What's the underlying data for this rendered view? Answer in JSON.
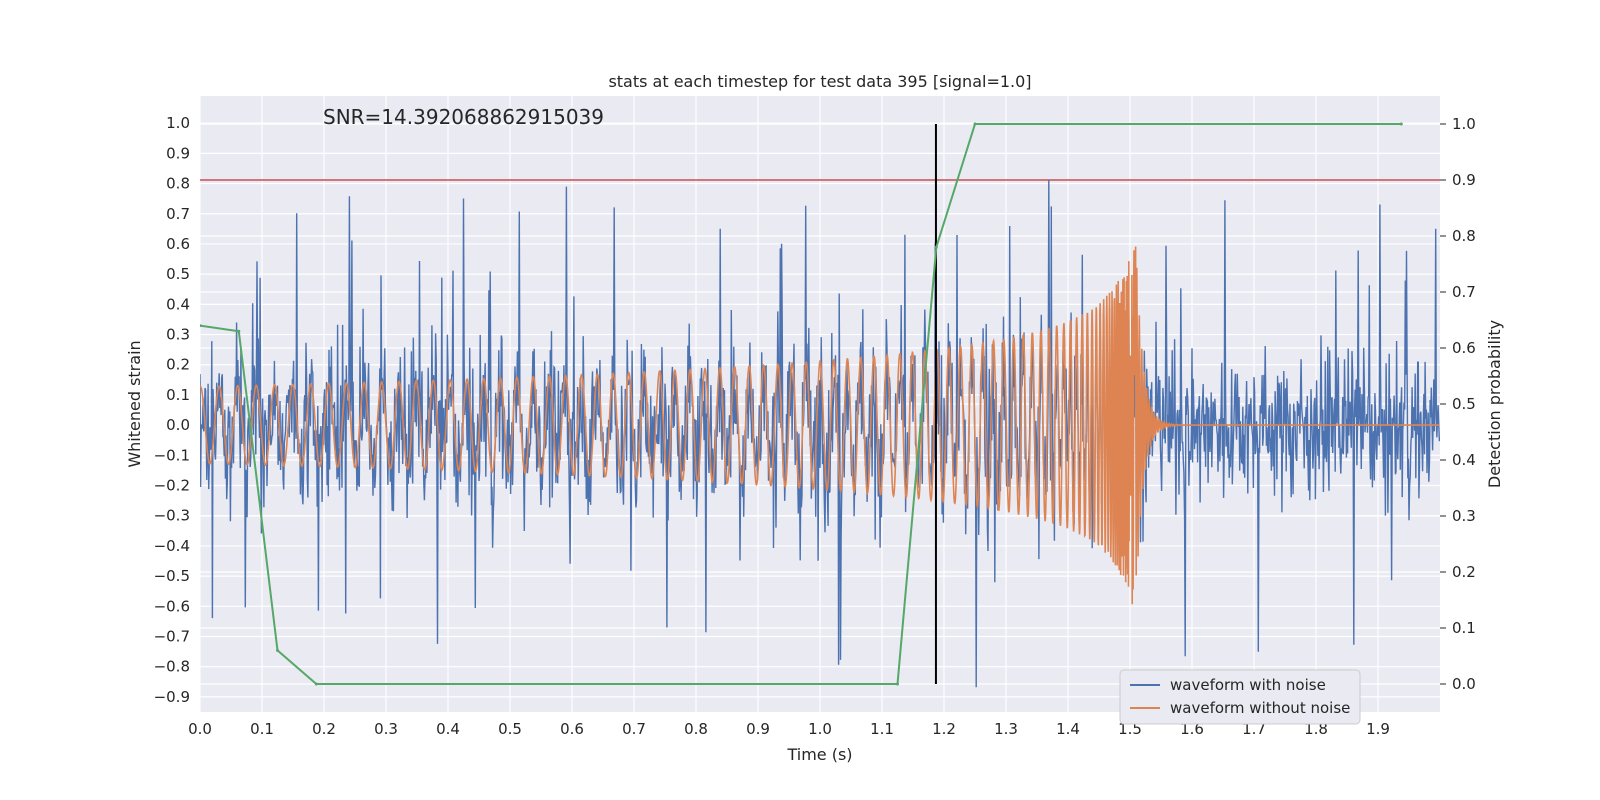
{
  "chart_data": {
    "type": "line",
    "title": "stats at each timestep for test data 395 [signal=1.0]",
    "annotation": "SNR=14.392068862915039",
    "xlabel": "Time (s)",
    "ylabel": "Whitened strain",
    "ylabel_right": "Detection probability",
    "xlim": [
      0.0,
      2.0
    ],
    "ylim": [
      -0.95,
      1.09
    ],
    "ylim_right": [
      -0.05,
      1.05
    ],
    "x_ticks": [
      "0.0",
      "0.1",
      "0.2",
      "0.3",
      "0.4",
      "0.5",
      "0.6",
      "0.7",
      "0.8",
      "0.9",
      "1.0",
      "1.1",
      "1.2",
      "1.3",
      "1.4",
      "1.5",
      "1.6",
      "1.7",
      "1.8",
      "1.9"
    ],
    "y_ticks": [
      "1.0",
      "0.9",
      "0.8",
      "0.7",
      "0.6",
      "0.5",
      "0.4",
      "0.3",
      "0.2",
      "0.1",
      "0.0",
      "−0.1",
      "−0.2",
      "−0.3",
      "−0.4",
      "−0.5",
      "−0.6",
      "−0.7",
      "−0.8",
      "−0.9"
    ],
    "y_ticks_right": [
      "1.0",
      "0.9",
      "0.8",
      "0.7",
      "0.6",
      "0.5",
      "0.4",
      "0.3",
      "0.2",
      "0.1",
      "0.0"
    ],
    "grid": true,
    "legend": {
      "position": "lower-right",
      "entries": [
        {
          "label": "waveform with noise",
          "color": "#4c72b0"
        },
        {
          "label": "waveform without noise",
          "color": "#dd8452"
        }
      ]
    },
    "series": [
      {
        "name": "waveform with noise",
        "axis": "left",
        "color": "#4c72b0",
        "description": "random noise, amplitude roughly ±0.4 with spikes to ±0.9"
      },
      {
        "name": "waveform without noise",
        "axis": "left",
        "color": "#dd8452",
        "description": "chirp signal, amplitude growing to ~0.57, merger at ~1.51 s"
      },
      {
        "name": "detection probability",
        "axis": "right",
        "color": "#55a868",
        "x": [
          0.0,
          0.0625,
          0.125,
          0.1875,
          1.125,
          1.1875,
          1.25,
          1.9375
        ],
        "values": [
          0.64,
          0.63,
          0.06,
          0.0,
          0.0,
          0.78,
          1.0,
          1.0
        ]
      }
    ],
    "threshold_line": {
      "axis": "right",
      "value": 0.9,
      "color": "#c44e52"
    },
    "marker_line": {
      "x": 1.187,
      "color": "#000000"
    },
    "colors": {
      "axes_bg": "#eaeaf2",
      "grid": "#ffffff"
    }
  }
}
